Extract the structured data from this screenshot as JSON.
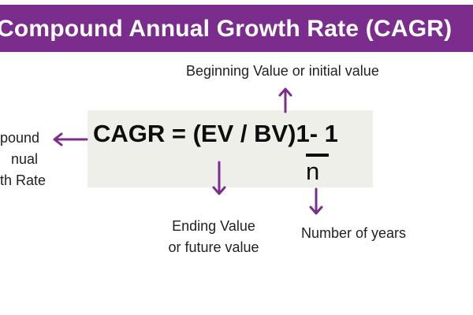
{
  "title": "Compound Annual Growth Rate (CAGR)",
  "formula": {
    "main": "CAGR = (EV / BV)1- 1",
    "denominator": "n"
  },
  "labels": {
    "beginning_value": "Beginning Value or initial value",
    "cagr_lines": [
      "pound",
      "nual",
      "th Rate"
    ],
    "ending_value_lines": [
      "Ending Value",
      "or future value"
    ],
    "number_of_years": "Number of years"
  },
  "colors": {
    "banner": "#7b2d8e",
    "arrow": "#7b2d8e",
    "formula_box": "#efefea"
  }
}
